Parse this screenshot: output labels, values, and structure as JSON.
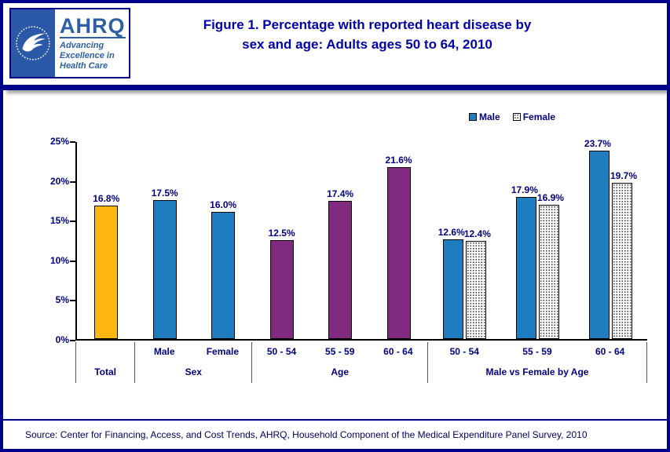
{
  "logo": {
    "ahrq_text": "AHRQ",
    "tagline_line1": "Advancing",
    "tagline_line2": "Excellence in",
    "tagline_line3": "Health Care"
  },
  "header": {
    "title_line1": "Figure 1. Percentage with reported heart disease by",
    "title_line2": "sex and age: Adults ages 50 to 64, 2010"
  },
  "footer": {
    "source": "Source: Center for Financing, Access, and Cost Trends, AHRQ, Household Component of the Medical Expenditure Panel Survey, 2010"
  },
  "chart_data": {
    "type": "bar",
    "title": "Figure 1. Percentage with reported heart disease by sex and age: Adults ages 50 to 64, 2010",
    "ylabel": "",
    "ylim": [
      0,
      25
    ],
    "ytick_step": 5,
    "yticks": [
      "0%",
      "5%",
      "10%",
      "15%",
      "20%",
      "25%"
    ],
    "grid": false,
    "legend_position": "top-right",
    "legend": [
      {
        "label": "Male",
        "style": "male"
      },
      {
        "label": "Female",
        "style": "female"
      }
    ],
    "colors": {
      "total": "#FFB612",
      "male": "#1F7CBF",
      "age": "#802A80",
      "female": "#FFFFFF dotted",
      "text": "#000080"
    },
    "groups": [
      {
        "label": "Total",
        "clusters": [
          {
            "tick": "",
            "bars": [
              {
                "value": 16.8,
                "label": "16.8%",
                "style": "total"
              }
            ]
          }
        ]
      },
      {
        "label": "Sex",
        "clusters": [
          {
            "tick": "Male",
            "bars": [
              {
                "value": 17.5,
                "label": "17.5%",
                "style": "male"
              }
            ]
          },
          {
            "tick": "Female",
            "bars": [
              {
                "value": 16.0,
                "label": "16.0%",
                "style": "male"
              }
            ]
          }
        ]
      },
      {
        "label": "Age",
        "clusters": [
          {
            "tick": "50 - 54",
            "bars": [
              {
                "value": 12.5,
                "label": "12.5%",
                "style": "age"
              }
            ]
          },
          {
            "tick": "55 - 59",
            "bars": [
              {
                "value": 17.4,
                "label": "17.4%",
                "style": "age"
              }
            ]
          },
          {
            "tick": "60 - 64",
            "bars": [
              {
                "value": 21.6,
                "label": "21.6%",
                "style": "age"
              }
            ]
          }
        ]
      },
      {
        "label": "Male vs Female by Age",
        "clusters": [
          {
            "tick": "50 - 54",
            "bars": [
              {
                "value": 12.6,
                "label": "12.6%",
                "style": "male"
              },
              {
                "value": 12.4,
                "label": "12.4%",
                "style": "female"
              }
            ]
          },
          {
            "tick": "55 - 59",
            "bars": [
              {
                "value": 17.9,
                "label": "17.9%",
                "style": "male"
              },
              {
                "value": 16.9,
                "label": "16.9%",
                "style": "female"
              }
            ]
          },
          {
            "tick": "60 - 64",
            "bars": [
              {
                "value": 23.7,
                "label": "23.7%",
                "style": "male"
              },
              {
                "value": 19.7,
                "label": "19.7%",
                "style": "female"
              }
            ]
          }
        ]
      }
    ]
  }
}
